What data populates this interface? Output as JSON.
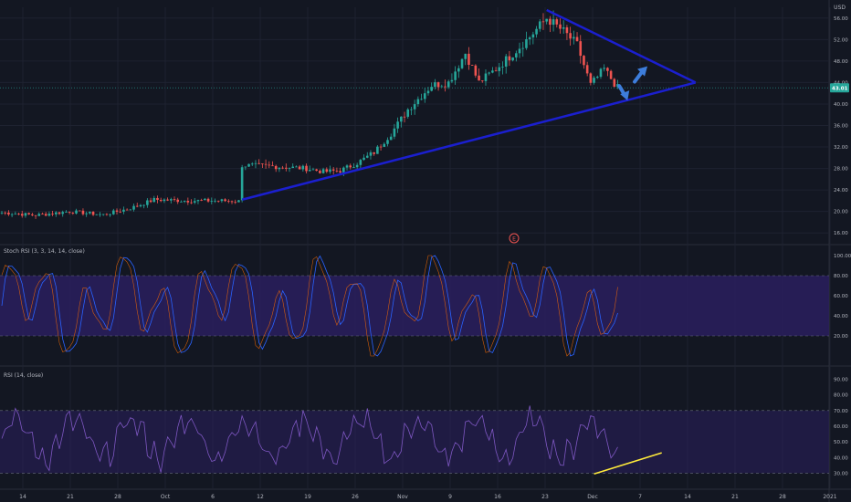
{
  "colors": {
    "background": "#131722",
    "grid": "#1e2230",
    "axis_text": "#b2b5be",
    "candle_up": "#26a69a",
    "candle_down": "#ef5350",
    "trendline": "#1b1fcf",
    "arrow": "#3d7ddb",
    "stoch_k": "#2962ff",
    "stoch_d": "#ff6d00",
    "band_fill": "#2a1f5e",
    "rsi_line": "#7e57c2",
    "rsi_trend": "#ffeb3b",
    "price_badge": "#26a69a"
  },
  "price_axis": {
    "currency": "USD",
    "ticks": [
      "56.00",
      "52.00",
      "48.00",
      "44.00",
      "40.00",
      "36.00",
      "32.00",
      "28.00",
      "24.00",
      "20.00",
      "16.00"
    ],
    "current_price": "43.01"
  },
  "date_axis": {
    "labels": [
      "14",
      "21",
      "28",
      "Oct",
      "6",
      "12",
      "19",
      "26",
      "Nov",
      "9",
      "16",
      "23",
      "Dec",
      "7",
      "14",
      "21",
      "28",
      "2021"
    ]
  },
  "indicators": {
    "stoch_label": "Stoch RSI (3, 3, 14, 14, close)",
    "stoch_ticks": [
      "100.00",
      "80.00",
      "60.00",
      "40.00",
      "20.00"
    ],
    "rsi_label": "RSI (14, close)",
    "rsi_ticks": [
      "90.00",
      "80.00",
      "70.00",
      "60.00",
      "50.00",
      "40.00",
      "30.00"
    ]
  },
  "earnings_marker": "E",
  "chart_data": {
    "type": "candlestick",
    "y_range": [
      14,
      58
    ],
    "close_anchors": [
      [
        0,
        19.8
      ],
      [
        10,
        19.3
      ],
      [
        20,
        20.0
      ],
      [
        30,
        19.4
      ],
      [
        38,
        20.6
      ],
      [
        45,
        22.2
      ],
      [
        55,
        22.0
      ],
      [
        65,
        22.0
      ],
      [
        70,
        21.9
      ],
      [
        71,
        28.6
      ],
      [
        80,
        28.4
      ],
      [
        90,
        28.0
      ],
      [
        95,
        27.4
      ],
      [
        100,
        27.6
      ],
      [
        105,
        29.0
      ],
      [
        110,
        31.0
      ],
      [
        115,
        34.5
      ],
      [
        120,
        39.0
      ],
      [
        127,
        43.5
      ],
      [
        132,
        44.0
      ],
      [
        137,
        49.5
      ],
      [
        141,
        44.0
      ],
      [
        146,
        46.5
      ],
      [
        152,
        50.0
      ],
      [
        156,
        52.5
      ],
      [
        161,
        56.0
      ],
      [
        166,
        53.5
      ],
      [
        170,
        51.0
      ],
      [
        174,
        43.5
      ],
      [
        178,
        46.5
      ],
      [
        182,
        43.0
      ]
    ],
    "x_domain": [
      0,
      245
    ],
    "stoch_range": [
      0,
      100
    ],
    "stoch_bands": [
      20,
      80
    ],
    "rsi_range": [
      25,
      95
    ],
    "rsi_bands": [
      30,
      70
    ],
    "trendlines": {
      "upper": {
        "from": [
          161,
          57.5
        ],
        "to": [
          205,
          44.0
        ]
      },
      "lower": {
        "from": [
          71,
          22.2
        ],
        "to": [
          205,
          44.0
        ]
      },
      "rsi_trend": {
        "from": [
          175,
          29.5
        ],
        "to": [
          195,
          43.0
        ]
      }
    },
    "arrows": [
      {
        "direction": "up",
        "at": [
          187,
          45.5
        ]
      },
      {
        "direction": "down",
        "at": [
          183,
          42.0
        ]
      }
    ]
  }
}
